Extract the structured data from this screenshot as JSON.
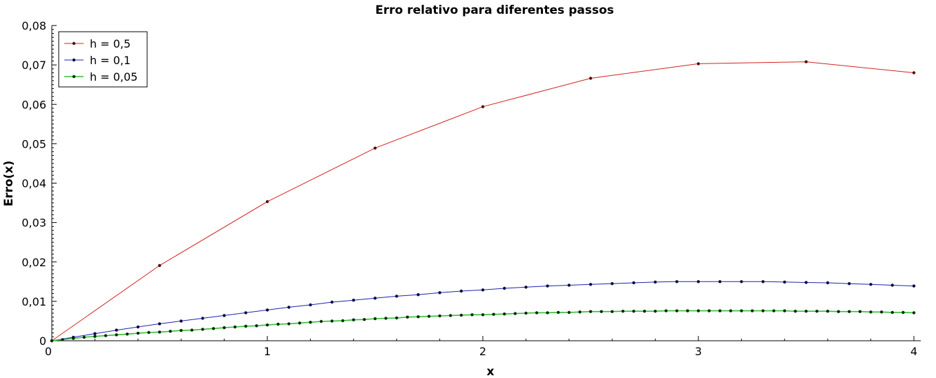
{
  "chart_data": {
    "type": "line",
    "title": "Erro relativo para diferentes passos",
    "xlabel": "x",
    "ylabel": "Erro(x)",
    "xlim": [
      0,
      4
    ],
    "ylim": [
      0,
      0.08
    ],
    "x_ticks": [
      {
        "value": 0,
        "label": "0"
      },
      {
        "value": 1,
        "label": "1"
      },
      {
        "value": 2,
        "label": "2"
      },
      {
        "value": 3,
        "label": "3"
      },
      {
        "value": 4,
        "label": "4"
      }
    ],
    "y_ticks": [
      {
        "value": 0,
        "label": "0"
      },
      {
        "value": 0.01,
        "label": "0,01"
      },
      {
        "value": 0.02,
        "label": "0,02"
      },
      {
        "value": 0.03,
        "label": "0,03"
      },
      {
        "value": 0.04,
        "label": "0,04"
      },
      {
        "value": 0.05,
        "label": "0,05"
      },
      {
        "value": 0.06,
        "label": "0,06"
      },
      {
        "value": 0.07,
        "label": "0,07"
      },
      {
        "value": 0.08,
        "label": "0,08"
      }
    ],
    "grid": false,
    "legend_position": "top-left",
    "series": [
      {
        "name": "h = 0,5",
        "color": "#d42020",
        "marker_color": "#5a0a0a",
        "x": [
          0,
          0.5,
          1.0,
          1.5,
          2.0,
          2.5,
          3.0,
          3.5,
          4.0
        ],
        "y": [
          0,
          0.0191,
          0.0353,
          0.0489,
          0.0594,
          0.0666,
          0.0703,
          0.0708,
          0.068
        ]
      },
      {
        "name": "h = 0,1",
        "color": "#2020b0",
        "marker_color": "#0a0a40",
        "x": [
          0,
          0.1,
          0.2,
          0.3,
          0.4,
          0.5,
          0.6,
          0.7,
          0.8,
          0.9,
          1.0,
          1.1,
          1.2,
          1.3,
          1.4,
          1.5,
          1.6,
          1.7,
          1.8,
          1.9,
          2.0,
          2.1,
          2.2,
          2.3,
          2.4,
          2.5,
          2.6,
          2.7,
          2.8,
          2.9,
          3.0,
          3.1,
          3.2,
          3.3,
          3.4,
          3.5,
          3.6,
          3.7,
          3.8,
          3.9,
          4.0
        ],
        "y": [
          0,
          0.0009,
          0.0018,
          0.0027,
          0.0035,
          0.0043,
          0.005,
          0.0057,
          0.0064,
          0.0071,
          0.0078,
          0.0085,
          0.0091,
          0.0098,
          0.0103,
          0.0108,
          0.0113,
          0.0117,
          0.0122,
          0.0126,
          0.0129,
          0.0133,
          0.0136,
          0.0139,
          0.0141,
          0.0143,
          0.0145,
          0.0147,
          0.0149,
          0.015,
          0.015,
          0.015,
          0.015,
          0.015,
          0.0149,
          0.0148,
          0.0147,
          0.0145,
          0.0143,
          0.0141,
          0.0139
        ]
      },
      {
        "name": "h = 0,05",
        "color": "#30c030",
        "marker_color": "#0a2a0a",
        "x": [
          0,
          0.05,
          0.1,
          0.15,
          0.2,
          0.25,
          0.3,
          0.35,
          0.4,
          0.45,
          0.5,
          0.55,
          0.6,
          0.65,
          0.7,
          0.75,
          0.8,
          0.85,
          0.9,
          0.95,
          1.0,
          1.05,
          1.1,
          1.15,
          1.2,
          1.25,
          1.3,
          1.35,
          1.4,
          1.45,
          1.5,
          1.55,
          1.6,
          1.65,
          1.7,
          1.75,
          1.8,
          1.85,
          1.9,
          1.95,
          2.0,
          2.05,
          2.1,
          2.15,
          2.2,
          2.25,
          2.3,
          2.35,
          2.4,
          2.45,
          2.5,
          2.55,
          2.6,
          2.65,
          2.7,
          2.75,
          2.8,
          2.85,
          2.9,
          2.95,
          3.0,
          3.05,
          3.1,
          3.15,
          3.2,
          3.25,
          3.3,
          3.35,
          3.4,
          3.45,
          3.5,
          3.55,
          3.6,
          3.65,
          3.7,
          3.75,
          3.8,
          3.85,
          3.9,
          3.95,
          4.0
        ],
        "y": [
          0,
          0.0003,
          0.0006,
          0.0009,
          0.0011,
          0.0013,
          0.0015,
          0.0017,
          0.0019,
          0.0021,
          0.0022,
          0.0024,
          0.0026,
          0.0027,
          0.0029,
          0.0031,
          0.0033,
          0.0035,
          0.0037,
          0.0038,
          0.004,
          0.0042,
          0.0043,
          0.0045,
          0.0047,
          0.0049,
          0.005,
          0.0051,
          0.0053,
          0.0054,
          0.0056,
          0.0057,
          0.0058,
          0.006,
          0.0061,
          0.0062,
          0.0063,
          0.0064,
          0.0065,
          0.0066,
          0.0066,
          0.0067,
          0.0068,
          0.0069,
          0.007,
          0.0071,
          0.0071,
          0.0072,
          0.0072,
          0.0073,
          0.0074,
          0.0074,
          0.0074,
          0.0075,
          0.0075,
          0.0075,
          0.0075,
          0.0076,
          0.0076,
          0.0076,
          0.0076,
          0.0076,
          0.0076,
          0.0076,
          0.0076,
          0.0076,
          0.0076,
          0.0076,
          0.0076,
          0.0075,
          0.0075,
          0.0075,
          0.0075,
          0.0074,
          0.0074,
          0.0074,
          0.0073,
          0.0073,
          0.0072,
          0.0072,
          0.0071
        ]
      }
    ]
  }
}
